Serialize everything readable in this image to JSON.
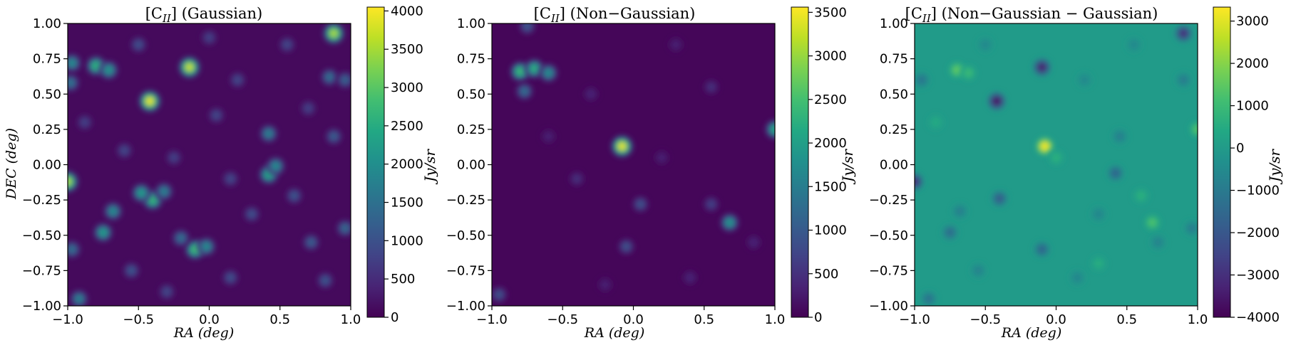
{
  "chart_data": [
    {
      "type": "heatmap",
      "title_main": "[C",
      "title_sub": "II",
      "title_rest": "] (Gaussian)",
      "xlabel": "RA (deg)",
      "ylabel": "DEC (deg)",
      "xlim": [
        -1,
        1
      ],
      "ylim": [
        -1,
        1
      ],
      "xticks": [
        "−1.0",
        "−0.5",
        "0.0",
        "0.5",
        "1.0"
      ],
      "yticks": [
        "1.00",
        "0.75",
        "0.50",
        "0.25",
        "0.00",
        "−0.25",
        "−0.50",
        "−0.75",
        "−1.00"
      ],
      "colormap": "viridis",
      "colorbar": {
        "label": "Jy/sr",
        "range": [
          0,
          4050
        ],
        "ticks": [
          0,
          500,
          1000,
          1500,
          2000,
          2500,
          3000,
          3500,
          4000
        ],
        "tick_labels": [
          "0",
          "500",
          "1000",
          "1500",
          "2000",
          "2500",
          "3000",
          "3500",
          "4000"
        ]
      },
      "background_value": 100,
      "sources": [
        {
          "ra": -0.42,
          "dec": 0.45,
          "value": 4000
        },
        {
          "ra": -0.14,
          "dec": 0.69,
          "value": 3800
        },
        {
          "ra": 0.88,
          "dec": 0.93,
          "value": 3600
        },
        {
          "ra": -1.0,
          "dec": -0.12,
          "value": 3600
        },
        {
          "ra": -0.8,
          "dec": 0.7,
          "value": 2700
        },
        {
          "ra": -0.71,
          "dec": 0.67,
          "value": 2200
        },
        {
          "ra": -0.97,
          "dec": 0.72,
          "value": 2000
        },
        {
          "ra": -0.98,
          "dec": 0.58,
          "value": 1600
        },
        {
          "ra": -0.4,
          "dec": -0.25,
          "value": 2800
        },
        {
          "ra": -0.48,
          "dec": -0.2,
          "value": 2300
        },
        {
          "ra": -0.32,
          "dec": -0.19,
          "value": 1800
        },
        {
          "ra": -0.1,
          "dec": -0.6,
          "value": 2900
        },
        {
          "ra": -0.02,
          "dec": -0.58,
          "value": 2000
        },
        {
          "ra": -0.2,
          "dec": -0.52,
          "value": 1500
        },
        {
          "ra": -0.75,
          "dec": -0.48,
          "value": 2300
        },
        {
          "ra": -0.68,
          "dec": -0.33,
          "value": 2000
        },
        {
          "ra": 0.42,
          "dec": -0.07,
          "value": 2500
        },
        {
          "ra": 0.47,
          "dec": -0.01,
          "value": 2000
        },
        {
          "ra": 0.42,
          "dec": 0.22,
          "value": 1800
        },
        {
          "ra": -0.92,
          "dec": -0.95,
          "value": 1800
        },
        {
          "ra": -0.97,
          "dec": -0.6,
          "value": 1500
        },
        {
          "ra": 0.96,
          "dec": -0.45,
          "value": 1400
        },
        {
          "ra": 0.85,
          "dec": 0.62,
          "value": 1500
        },
        {
          "ra": 0.96,
          "dec": 0.6,
          "value": 1300
        },
        {
          "ra": 0.88,
          "dec": 0.2,
          "value": 1200
        },
        {
          "ra": 0.6,
          "dec": -0.22,
          "value": 1100
        },
        {
          "ra": 0.72,
          "dec": -0.55,
          "value": 1200
        },
        {
          "ra": 0.82,
          "dec": -0.82,
          "value": 1100
        },
        {
          "ra": 0.3,
          "dec": -0.35,
          "value": 1000
        },
        {
          "ra": 0.15,
          "dec": -0.8,
          "value": 1000
        },
        {
          "ra": -0.55,
          "dec": -0.75,
          "value": 1100
        },
        {
          "ra": -0.3,
          "dec": -0.9,
          "value": 900
        },
        {
          "ra": -0.6,
          "dec": 0.1,
          "value": 900
        },
        {
          "ra": -0.25,
          "dec": 0.05,
          "value": 800
        },
        {
          "ra": 0.05,
          "dec": 0.35,
          "value": 900
        },
        {
          "ra": 0.2,
          "dec": 0.6,
          "value": 900
        },
        {
          "ra": -0.5,
          "dec": 0.85,
          "value": 1000
        },
        {
          "ra": 0.55,
          "dec": 0.85,
          "value": 900
        },
        {
          "ra": 0.0,
          "dec": 0.9,
          "value": 800
        },
        {
          "ra": 0.7,
          "dec": 0.4,
          "value": 800
        },
        {
          "ra": 0.15,
          "dec": -0.1,
          "value": 900
        },
        {
          "ra": -0.88,
          "dec": 0.3,
          "value": 800
        }
      ]
    },
    {
      "type": "heatmap",
      "title_main": "[C",
      "title_sub": "II",
      "title_rest": "] (Non−Gaussian)",
      "xlabel": "RA (deg)",
      "ylabel": "",
      "xlim": [
        -1,
        1
      ],
      "ylim": [
        -1,
        1
      ],
      "xticks": [
        "−1.0",
        "−0.5",
        "0.0",
        "0.5",
        "1.0"
      ],
      "yticks": [
        "1.00",
        "0.75",
        "0.50",
        "0.25",
        "0.00",
        "−0.25",
        "−0.50",
        "−0.75",
        "−1.00"
      ],
      "colormap": "viridis",
      "colorbar": {
        "label": "Jy/sr",
        "range": [
          0,
          3560
        ],
        "ticks": [
          0,
          500,
          1000,
          1500,
          2000,
          2500,
          3000,
          3500
        ],
        "tick_labels": [
          "0",
          "500",
          "1000",
          "1500",
          "2000",
          "2500",
          "3000",
          "3500"
        ]
      },
      "background_value": 50,
      "sources": [
        {
          "ra": -0.08,
          "dec": 0.13,
          "value": 3500
        },
        {
          "ra": -0.8,
          "dec": 0.66,
          "value": 2500
        },
        {
          "ra": -0.7,
          "dec": 0.68,
          "value": 2300
        },
        {
          "ra": -0.6,
          "dec": 0.65,
          "value": 1800
        },
        {
          "ra": -0.77,
          "dec": 0.52,
          "value": 1300
        },
        {
          "ra": 1.0,
          "dec": 0.25,
          "value": 2200
        },
        {
          "ra": 0.68,
          "dec": -0.41,
          "value": 1900
        },
        {
          "ra": -0.75,
          "dec": 0.98,
          "value": 1000
        },
        {
          "ra": -0.95,
          "dec": -0.92,
          "value": 900
        },
        {
          "ra": -0.05,
          "dec": -0.58,
          "value": 900
        },
        {
          "ra": 0.05,
          "dec": -0.28,
          "value": 900
        },
        {
          "ra": 0.55,
          "dec": -0.28,
          "value": 700
        },
        {
          "ra": 0.55,
          "dec": 0.55,
          "value": 500
        },
        {
          "ra": -0.4,
          "dec": -0.1,
          "value": 500
        },
        {
          "ra": 0.85,
          "dec": -0.55,
          "value": 400
        },
        {
          "ra": 0.4,
          "dec": -0.8,
          "value": 400
        },
        {
          "ra": -0.3,
          "dec": 0.5,
          "value": 400
        },
        {
          "ra": 0.3,
          "dec": 0.85,
          "value": 350
        },
        {
          "ra": -0.6,
          "dec": 0.2,
          "value": 350
        },
        {
          "ra": 0.2,
          "dec": 0.05,
          "value": 350
        },
        {
          "ra": -0.2,
          "dec": -0.85,
          "value": 350
        }
      ]
    },
    {
      "type": "heatmap",
      "title_main": "[C",
      "title_sub": "II",
      "title_rest": "] (Non−Gaussian − Gaussian)",
      "xlabel": "RA (deg)",
      "ylabel": "",
      "xlim": [
        -1,
        1
      ],
      "ylim": [
        -1,
        1
      ],
      "xticks": [
        "−1.0",
        "−0.5",
        "0.0",
        "0.5",
        "1.0"
      ],
      "yticks": [
        "1.00",
        "0.75",
        "0.50",
        "0.25",
        "0.00",
        "−0.25",
        "−0.50",
        "−0.75",
        "−1.00"
      ],
      "colormap": "viridis",
      "colorbar": {
        "label": "Jy/sr",
        "range": [
          -4000,
          3330
        ],
        "ticks": [
          -4000,
          -3000,
          -2000,
          -1000,
          0,
          1000,
          2000,
          3000
        ],
        "tick_labels": [
          "−4000",
          "−3000",
          "−2000",
          "−1000",
          "0",
          "1000",
          "2000",
          "3000"
        ]
      },
      "background_value": 0,
      "sources": [
        {
          "ra": -0.08,
          "dec": 0.13,
          "value": 3300
        },
        {
          "ra": -0.7,
          "dec": 0.67,
          "value": 1600
        },
        {
          "ra": -0.62,
          "dec": 0.65,
          "value": 1000
        },
        {
          "ra": 1.0,
          "dec": 0.25,
          "value": 1400
        },
        {
          "ra": 0.68,
          "dec": -0.41,
          "value": 1300
        },
        {
          "ra": 0.0,
          "dec": 0.05,
          "value": 700
        },
        {
          "ra": -0.42,
          "dec": 0.45,
          "value": -3900
        },
        {
          "ra": -0.1,
          "dec": 0.69,
          "value": -3600
        },
        {
          "ra": 0.9,
          "dec": 0.93,
          "value": -3200
        },
        {
          "ra": -1.0,
          "dec": -0.12,
          "value": -3300
        },
        {
          "ra": -0.4,
          "dec": -0.24,
          "value": -2000
        },
        {
          "ra": -0.1,
          "dec": -0.6,
          "value": -1700
        },
        {
          "ra": 0.42,
          "dec": -0.06,
          "value": -1700
        },
        {
          "ra": -0.75,
          "dec": -0.48,
          "value": -1500
        },
        {
          "ra": -0.9,
          "dec": -0.95,
          "value": -1300
        },
        {
          "ra": -0.95,
          "dec": 0.6,
          "value": -1200
        },
        {
          "ra": 0.9,
          "dec": 0.6,
          "value": -1000
        },
        {
          "ra": 0.96,
          "dec": -0.45,
          "value": -1000
        },
        {
          "ra": 0.45,
          "dec": 0.2,
          "value": -900
        },
        {
          "ra": -0.68,
          "dec": -0.33,
          "value": -900
        },
        {
          "ra": 0.72,
          "dec": -0.55,
          "value": -800
        },
        {
          "ra": 0.3,
          "dec": -0.35,
          "value": -700
        },
        {
          "ra": 0.15,
          "dec": -0.8,
          "value": -700
        },
        {
          "ra": -0.55,
          "dec": -0.75,
          "value": -800
        },
        {
          "ra": 0.55,
          "dec": 0.85,
          "value": -600
        },
        {
          "ra": 0.2,
          "dec": 0.6,
          "value": -600
        },
        {
          "ra": -0.5,
          "dec": 0.85,
          "value": -600
        },
        {
          "ra": 0.6,
          "dec": -0.22,
          "value": 700
        },
        {
          "ra": -0.85,
          "dec": 0.3,
          "value": 500
        },
        {
          "ra": 0.3,
          "dec": -0.7,
          "value": 600
        }
      ]
    }
  ]
}
